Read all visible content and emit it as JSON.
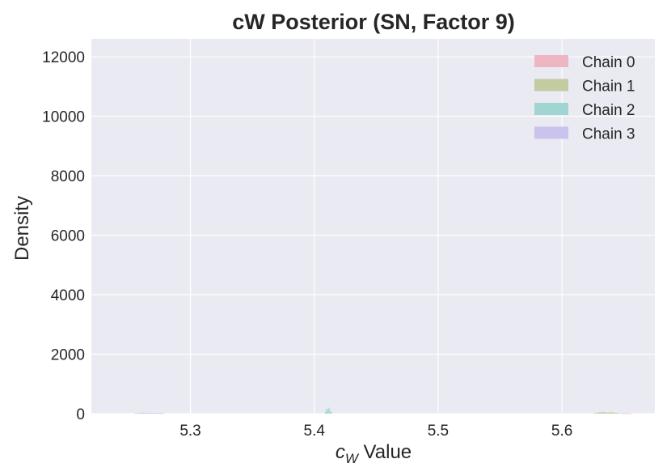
{
  "chart_data": {
    "type": "histogram",
    "title": "cW Posterior (SN, Factor 9)",
    "xlabel_symbol": "c",
    "xlabel_subscript": "W",
    "xlabel_text": " Value",
    "ylabel": "Density",
    "xlim": [
      5.22,
      5.675
    ],
    "ylim": [
      0,
      12600
    ],
    "xticks": [
      5.3,
      5.4,
      5.5,
      5.6
    ],
    "xtick_labels": [
      "5.3",
      "5.4",
      "5.5",
      "5.6"
    ],
    "yticks": [
      0,
      2000,
      4000,
      6000,
      8000,
      10000,
      12000
    ],
    "ytick_labels": [
      "0",
      "2000",
      "4000",
      "6000",
      "8000",
      "10000",
      "12000"
    ],
    "grid": true,
    "legend_position": "top-right",
    "series": [
      {
        "name": "Chain 0",
        "color": "#eeb6c3",
        "bins": [
          [
            5.648,
            5.65,
            10
          ],
          [
            5.65,
            5.652,
            18
          ],
          [
            5.652,
            5.654,
            14
          ],
          [
            5.654,
            5.656,
            8
          ]
        ]
      },
      {
        "name": "Chain 1",
        "color": "#c3cca0",
        "bins": [
          [
            5.626,
            5.629,
            25
          ],
          [
            5.629,
            5.632,
            45
          ],
          [
            5.632,
            5.635,
            55
          ],
          [
            5.635,
            5.638,
            40
          ],
          [
            5.638,
            5.641,
            50
          ],
          [
            5.641,
            5.644,
            35
          ],
          [
            5.644,
            5.647,
            20
          ]
        ]
      },
      {
        "name": "Chain 2",
        "color": "#a0d5d1",
        "bins": [
          [
            5.4085,
            5.4095,
            60
          ],
          [
            5.4095,
            5.4105,
            170
          ],
          [
            5.4105,
            5.4115,
            120
          ],
          [
            5.4115,
            5.4125,
            200
          ],
          [
            5.4125,
            5.4135,
            90
          ],
          [
            5.4135,
            5.4145,
            50
          ]
        ]
      },
      {
        "name": "Chain 3",
        "color": "#cac3ee",
        "bins": [
          [
            5.255,
            5.259,
            20
          ],
          [
            5.259,
            5.263,
            30
          ],
          [
            5.263,
            5.267,
            25
          ],
          [
            5.267,
            5.271,
            28
          ],
          [
            5.271,
            5.275,
            22
          ],
          [
            5.275,
            5.279,
            15
          ]
        ]
      }
    ]
  }
}
